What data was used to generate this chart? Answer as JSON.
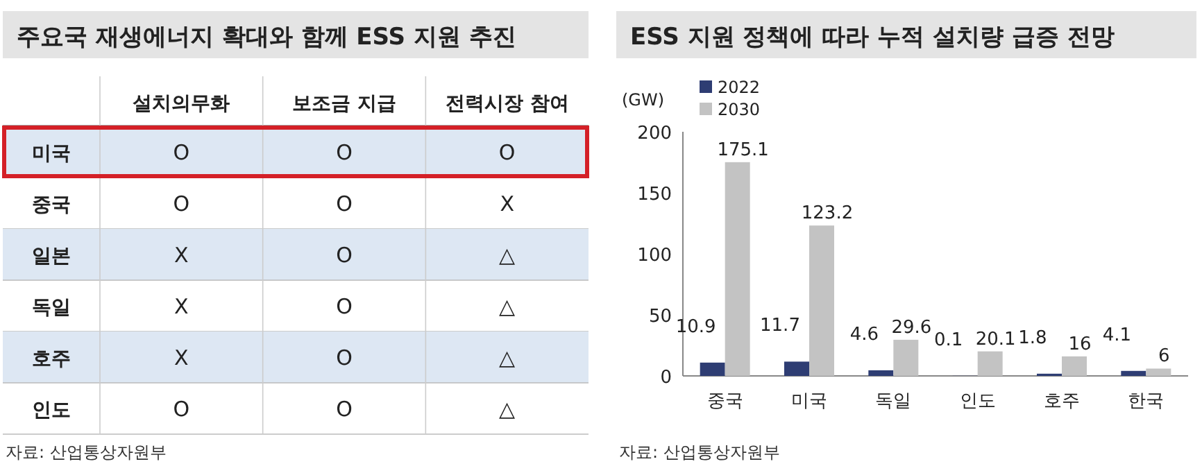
{
  "chart_data": [
    {
      "type": "other",
      "title": "주요국 재생에너지 확대와 함께 ESS 지원 추진",
      "categories": [
        "설치의무화",
        "보조금 지급",
        "전력시장 참여"
      ],
      "y_categories": [
        "미국",
        "중국",
        "일본",
        "독일",
        "호주",
        "인도"
      ],
      "cell_labels": [
        [
          "O",
          "O",
          "O"
        ],
        [
          "O",
          "O",
          "X"
        ],
        [
          "X",
          "O",
          "△"
        ],
        [
          "X",
          "O",
          "△"
        ],
        [
          "X",
          "O",
          "△"
        ],
        [
          "O",
          "O",
          "△"
        ]
      ],
      "annotations": [
        "자료: 산업통상자원부"
      ]
    },
    {
      "type": "bar",
      "title": "ESS 지원 정책에 따라 누적 설치량 급증 전망",
      "ylabel": "(GW)",
      "categories": [
        "중국",
        "미국",
        "독일",
        "인도",
        "호주",
        "한국"
      ],
      "series": [
        {
          "name": "2022",
          "color": "#2e3d73",
          "values": [
            10.9,
            11.7,
            4.6,
            0.1,
            1.8,
            4.1
          ]
        },
        {
          "name": "2030",
          "color": "#c3c3c3",
          "values": [
            175.1,
            123.2,
            29.6,
            20.1,
            16,
            6
          ]
        }
      ],
      "ylim": [
        0,
        200
      ],
      "yticks": [
        0,
        50,
        100,
        150,
        200
      ],
      "data_labels": true,
      "legend": "top left",
      "grid": false,
      "annotations": [
        "자료: 산업통상자원부"
      ]
    }
  ]
}
